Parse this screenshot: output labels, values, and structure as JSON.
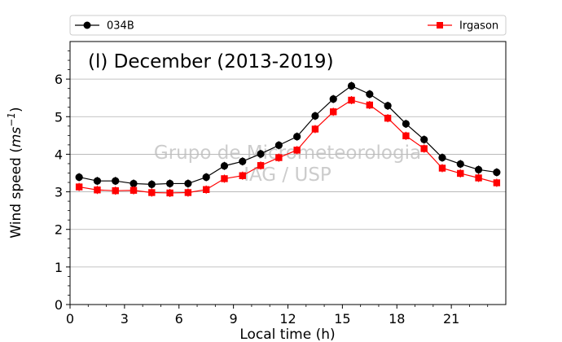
{
  "chart_data": {
    "type": "line",
    "title": "(l) December (2013-2019)",
    "xlabel": "Local time (h)",
    "ylabel_main": "Wind speed (",
    "ylabel_unit": "ms",
    "ylabel_exp": "−1",
    "ylabel_close": ")",
    "xlim": [
      0,
      24
    ],
    "ylim": [
      0,
      7
    ],
    "x_ticks": [
      0,
      3,
      6,
      9,
      12,
      15,
      18,
      21
    ],
    "y_ticks": [
      0,
      1,
      2,
      3,
      4,
      5,
      6
    ],
    "grid": "horizontal",
    "legend_placement": "top, above plot",
    "watermark": [
      "Grupo de Micrometeorologia",
      "IAG / USP"
    ],
    "x": [
      0.5,
      1.5,
      2.5,
      3.5,
      4.5,
      5.5,
      6.5,
      7.5,
      8.5,
      9.5,
      10.5,
      11.5,
      12.5,
      13.5,
      14.5,
      15.5,
      16.5,
      17.5,
      18.5,
      19.5,
      20.5,
      21.5,
      22.5,
      23.5
    ],
    "series": [
      {
        "name": "034B",
        "color": "#000000",
        "marker": "circle",
        "values": [
          3.39,
          3.29,
          3.29,
          3.22,
          3.2,
          3.22,
          3.22,
          3.39,
          3.69,
          3.81,
          4.01,
          4.24,
          4.47,
          5.02,
          5.47,
          5.82,
          5.6,
          5.29,
          4.81,
          4.39,
          3.91,
          3.74,
          3.59,
          3.52
        ]
      },
      {
        "name": "Irgason",
        "color": "#ff0000",
        "marker": "square",
        "values": [
          3.13,
          3.05,
          3.03,
          3.04,
          2.98,
          2.97,
          2.98,
          3.06,
          3.35,
          3.43,
          3.7,
          3.91,
          4.11,
          4.67,
          5.13,
          5.44,
          5.31,
          4.96,
          4.49,
          4.15,
          3.63,
          3.49,
          3.37,
          3.24
        ]
      }
    ]
  }
}
